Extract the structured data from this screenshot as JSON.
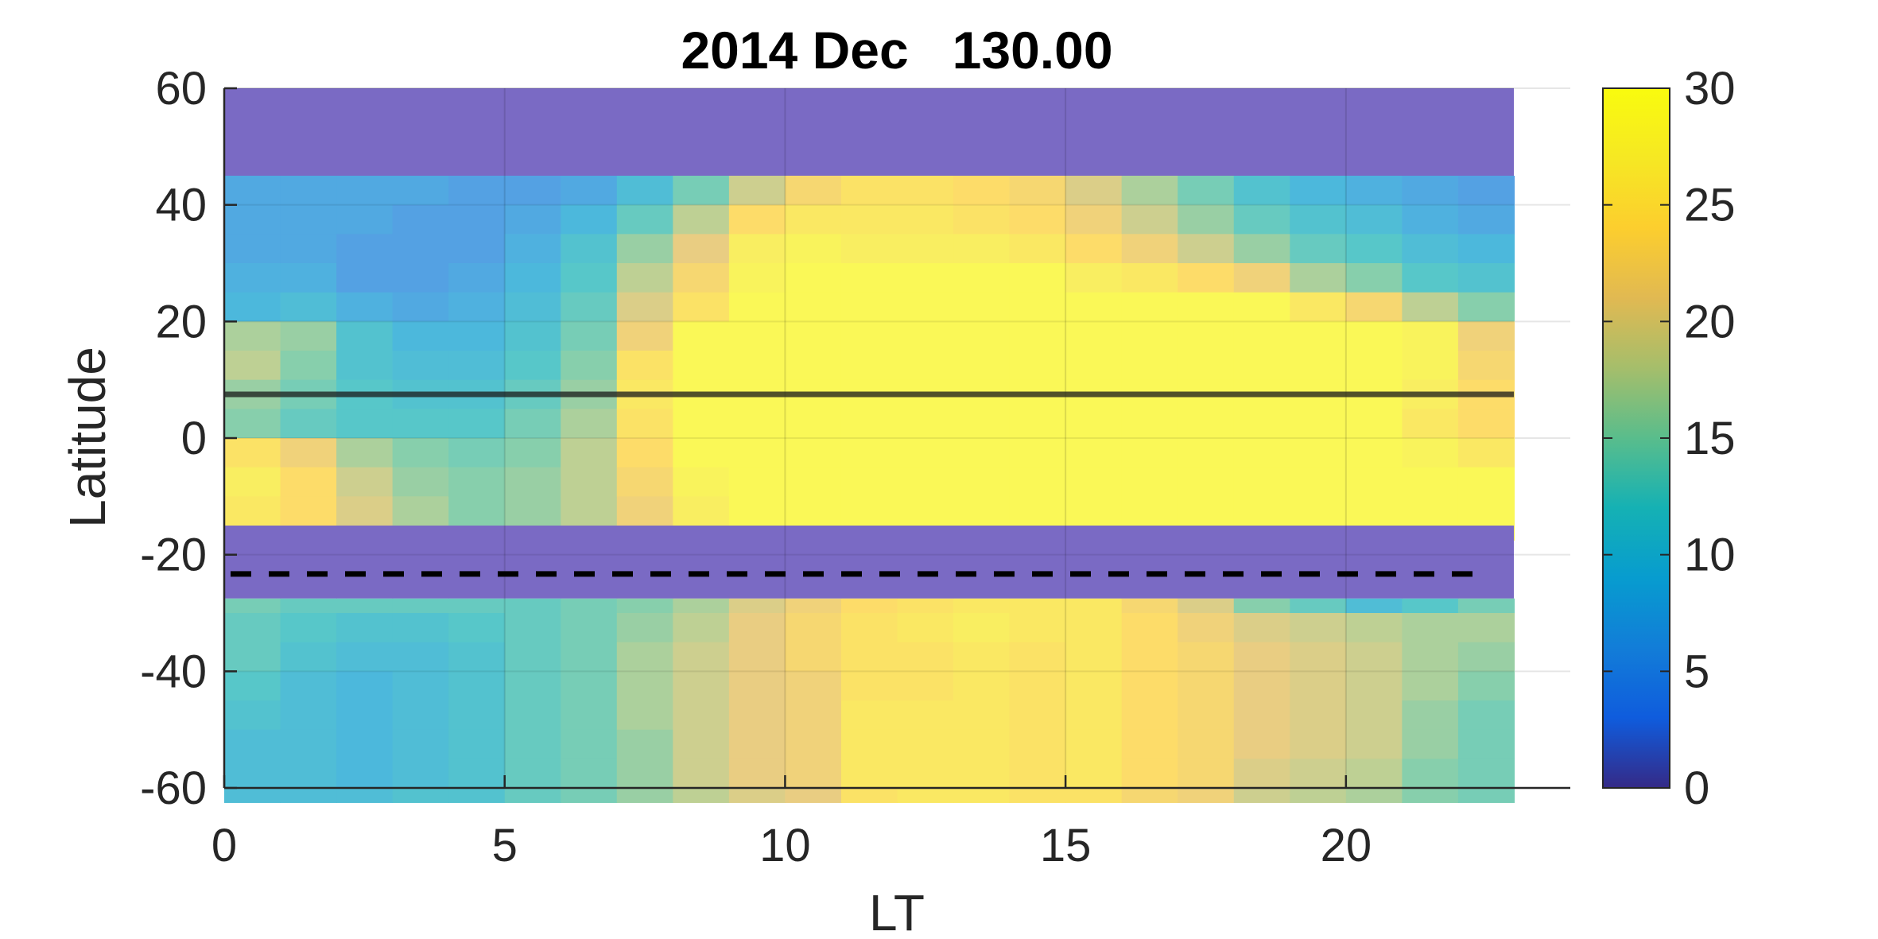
{
  "chart_data": {
    "type": "heatmap",
    "title": "2014 Dec   130.00",
    "xlabel": "LT",
    "ylabel": "Latitude",
    "xlim": [
      0,
      24
    ],
    "ylim": [
      -60,
      60
    ],
    "clim": [
      0,
      30
    ],
    "xticks": [
      "0",
      "5",
      "10",
      "15",
      "20"
    ],
    "yticks": [
      "-60",
      "-40",
      "-20",
      "0",
      "20",
      "40",
      "60"
    ],
    "colorbar_ticks": [
      "0",
      "5",
      "10",
      "15",
      "20",
      "25",
      "30"
    ],
    "colormap": "parula",
    "grid": true,
    "x_centers": [
      0.5,
      1.5,
      2.5,
      3.5,
      4.5,
      5.5,
      6.5,
      7.5,
      8.5,
      9.5,
      10.5,
      11.5,
      12.5,
      13.5,
      14.5,
      15.5,
      16.5,
      17.5,
      18.5,
      19.5,
      20.5,
      21.5,
      22.5
    ],
    "profiles_north": [
      {
        "lat": [
          45,
          40,
          35,
          30,
          25,
          20,
          15,
          10,
          5,
          0,
          -5,
          -10,
          -15
        ],
        "values": [
          7,
          7,
          7,
          8,
          9,
          17,
          18,
          16,
          15,
          25,
          27,
          26,
          25
        ]
      },
      {
        "lat": [
          45,
          40,
          35,
          30,
          25,
          20,
          15,
          10,
          5,
          0,
          -5,
          -10,
          -15
        ],
        "values": [
          7,
          7,
          7,
          8,
          10,
          16,
          15,
          14,
          13,
          22,
          24,
          24,
          23
        ]
      },
      {
        "lat": [
          45,
          40,
          35,
          30,
          25,
          20,
          15,
          10,
          5,
          0,
          -5,
          -10,
          -15
        ],
        "values": [
          7,
          7,
          6,
          6,
          8,
          11,
          11,
          12,
          12,
          17,
          19,
          20,
          20
        ]
      },
      {
        "lat": [
          45,
          40,
          35,
          30,
          25,
          20,
          15,
          10,
          5,
          0,
          -5,
          -10,
          -15
        ],
        "values": [
          7,
          6,
          6,
          6,
          7,
          9,
          10,
          11,
          12,
          15,
          16,
          17,
          17
        ]
      },
      {
        "lat": [
          45,
          40,
          35,
          30,
          25,
          20,
          15,
          10,
          5,
          0,
          -5,
          -10,
          -15
        ],
        "values": [
          6,
          6,
          6,
          7,
          8,
          9,
          10,
          11,
          12,
          14,
          15,
          15,
          15
        ]
      },
      {
        "lat": [
          45,
          40,
          35,
          30,
          25,
          20,
          15,
          10,
          5,
          0,
          -5,
          -10,
          -15
        ],
        "values": [
          6,
          7,
          8,
          9,
          10,
          11,
          12,
          13,
          14,
          15,
          16,
          16,
          16
        ]
      },
      {
        "lat": [
          45,
          40,
          35,
          30,
          25,
          20,
          15,
          10,
          5,
          0,
          -5,
          -10,
          -15
        ],
        "values": [
          7,
          9,
          11,
          12,
          13,
          14,
          15,
          16,
          17,
          18,
          18,
          18,
          18
        ]
      },
      {
        "lat": [
          45,
          40,
          35,
          30,
          25,
          20,
          15,
          10,
          5,
          0,
          -5,
          -10,
          -15
        ],
        "values": [
          10,
          13,
          16,
          18,
          20,
          22,
          25,
          26,
          25,
          24,
          23,
          22,
          22
        ]
      },
      {
        "lat": [
          45,
          40,
          35,
          30,
          25,
          20,
          15,
          10,
          5,
          0,
          -5,
          -10,
          -15
        ],
        "values": [
          14,
          18,
          21,
          23,
          25,
          29,
          29,
          29,
          29,
          29,
          28,
          27,
          27
        ]
      },
      {
        "lat": [
          45,
          40,
          35,
          30,
          25,
          20,
          15,
          10,
          5,
          0,
          -5,
          -10,
          -15
        ],
        "values": [
          19,
          24,
          27,
          28,
          29,
          29,
          29,
          29,
          29,
          29,
          29,
          29,
          28
        ]
      },
      {
        "lat": [
          45,
          40,
          35,
          30,
          25,
          20,
          15,
          10,
          5,
          0,
          -5,
          -10,
          -15
        ],
        "values": [
          23,
          26,
          28,
          29,
          29,
          29,
          29,
          29,
          29,
          29,
          29,
          29,
          29
        ]
      },
      {
        "lat": [
          45,
          40,
          35,
          30,
          25,
          20,
          15,
          10,
          5,
          0,
          -5,
          -10,
          -15
        ],
        "values": [
          25,
          26,
          27,
          29,
          29,
          29,
          29,
          29,
          29,
          29,
          29,
          29,
          29
        ]
      },
      {
        "lat": [
          45,
          40,
          35,
          30,
          25,
          20,
          15,
          10,
          5,
          0,
          -5,
          -10,
          -15
        ],
        "values": [
          25,
          26,
          27,
          29,
          29,
          29,
          29,
          29,
          29,
          29,
          29,
          29,
          29
        ]
      },
      {
        "lat": [
          45,
          40,
          35,
          30,
          25,
          20,
          15,
          10,
          5,
          0,
          -5,
          -10,
          -15
        ],
        "values": [
          24,
          25,
          27,
          29,
          29,
          29,
          29,
          29,
          29,
          29,
          29,
          29,
          29
        ]
      },
      {
        "lat": [
          45,
          40,
          35,
          30,
          25,
          20,
          15,
          10,
          5,
          0,
          -5,
          -10,
          -15
        ],
        "values": [
          23,
          24,
          26,
          29,
          29,
          29,
          29,
          29,
          29,
          29,
          29,
          29,
          29
        ]
      },
      {
        "lat": [
          45,
          40,
          35,
          30,
          25,
          20,
          15,
          10,
          5,
          0,
          -5,
          -10,
          -15
        ],
        "values": [
          20,
          22,
          24,
          27,
          29,
          29,
          29,
          29,
          29,
          29,
          29,
          29,
          29
        ]
      },
      {
        "lat": [
          45,
          40,
          35,
          30,
          25,
          20,
          15,
          10,
          5,
          0,
          -5,
          -10,
          -15
        ],
        "values": [
          17,
          19,
          22,
          26,
          29,
          29,
          29,
          29,
          29,
          29,
          29,
          29,
          29
        ]
      },
      {
        "lat": [
          45,
          40,
          35,
          30,
          25,
          20,
          15,
          10,
          5,
          0,
          -5,
          -10,
          -15
        ],
        "values": [
          14,
          16,
          19,
          24,
          29,
          29,
          29,
          29,
          29,
          29,
          29,
          29,
          29
        ]
      },
      {
        "lat": [
          45,
          40,
          35,
          30,
          25,
          20,
          15,
          10,
          5,
          0,
          -5,
          -10,
          -15
        ],
        "values": [
          11,
          13,
          16,
          22,
          29,
          29,
          29,
          29,
          29,
          29,
          29,
          29,
          29
        ]
      },
      {
        "lat": [
          45,
          40,
          35,
          30,
          25,
          20,
          15,
          10,
          5,
          0,
          -5,
          -10,
          -15
        ],
        "values": [
          9,
          11,
          13,
          17,
          26,
          29,
          29,
          29,
          29,
          29,
          29,
          29,
          29
        ]
      },
      {
        "lat": [
          45,
          40,
          35,
          30,
          25,
          20,
          15,
          10,
          5,
          0,
          -5,
          -10,
          -15
        ],
        "values": [
          8,
          10,
          12,
          15,
          23,
          29,
          29,
          29,
          29,
          29,
          29,
          29,
          29
        ]
      },
      {
        "lat": [
          45,
          40,
          35,
          30,
          25,
          20,
          15,
          10,
          5,
          0,
          -5,
          -10,
          -15
        ],
        "values": [
          7,
          8,
          10,
          12,
          18,
          28,
          28,
          27,
          26,
          28,
          29,
          29,
          29
        ]
      },
      {
        "lat": [
          45,
          40,
          35,
          30,
          25,
          20,
          15,
          10,
          5,
          0,
          -5,
          -10,
          -15
        ],
        "values": [
          6,
          7,
          9,
          11,
          15,
          22,
          23,
          24,
          24,
          26,
          29,
          29,
          29
        ]
      }
    ],
    "profiles_south": [
      {
        "lat": [
          -27.5,
          -30,
          -35,
          -40,
          -45,
          -50,
          -55,
          -60
        ],
        "values": [
          14,
          13,
          13,
          12,
          11,
          10,
          10,
          10
        ]
      },
      {
        "lat": [
          -27.5,
          -30,
          -35,
          -40,
          -45,
          -50,
          -55,
          -60
        ],
        "values": [
          13,
          12,
          11,
          10,
          10,
          10,
          10,
          10
        ]
      },
      {
        "lat": [
          -27.5,
          -30,
          -35,
          -40,
          -45,
          -50,
          -55,
          -60
        ],
        "values": [
          13,
          11,
          10,
          9,
          9,
          9,
          9,
          10
        ]
      },
      {
        "lat": [
          -27.5,
          -30,
          -35,
          -40,
          -45,
          -50,
          -55,
          -60
        ],
        "values": [
          13,
          11,
          10,
          10,
          10,
          10,
          10,
          11
        ]
      },
      {
        "lat": [
          -27.5,
          -30,
          -35,
          -40,
          -45,
          -50,
          -55,
          -60
        ],
        "values": [
          13,
          12,
          11,
          11,
          11,
          11,
          11,
          11
        ]
      },
      {
        "lat": [
          -27.5,
          -30,
          -35,
          -40,
          -45,
          -50,
          -55,
          -60
        ],
        "values": [
          13,
          13,
          13,
          13,
          13,
          13,
          13,
          13
        ]
      },
      {
        "lat": [
          -27.5,
          -30,
          -35,
          -40,
          -45,
          -50,
          -55,
          -60
        ],
        "values": [
          14,
          14,
          14,
          14,
          14,
          14,
          14,
          14
        ]
      },
      {
        "lat": [
          -27.5,
          -30,
          -35,
          -40,
          -45,
          -50,
          -55,
          -60
        ],
        "values": [
          15,
          16,
          17,
          17,
          17,
          16,
          16,
          16
        ]
      },
      {
        "lat": [
          -27.5,
          -30,
          -35,
          -40,
          -45,
          -50,
          -55,
          -60
        ],
        "values": [
          17,
          18,
          19,
          19,
          19,
          19,
          19,
          18
        ]
      },
      {
        "lat": [
          -27.5,
          -30,
          -35,
          -40,
          -45,
          -50,
          -55,
          -60
        ],
        "values": [
          20,
          21,
          21,
          21,
          21,
          21,
          21,
          20
        ]
      },
      {
        "lat": [
          -27.5,
          -30,
          -35,
          -40,
          -45,
          -50,
          -55,
          -60
        ],
        "values": [
          22,
          23,
          23,
          22,
          22,
          22,
          22,
          21
        ]
      },
      {
        "lat": [
          -27.5,
          -30,
          -35,
          -40,
          -45,
          -50,
          -55,
          -60
        ],
        "values": [
          24,
          25,
          25,
          25,
          26,
          26,
          26,
          25
        ]
      },
      {
        "lat": [
          -27.5,
          -30,
          -35,
          -40,
          -45,
          -50,
          -55,
          -60
        ],
        "values": [
          25,
          26,
          25,
          25,
          26,
          26,
          26,
          26
        ]
      },
      {
        "lat": [
          -27.5,
          -30,
          -35,
          -40,
          -45,
          -50,
          -55,
          -60
        ],
        "values": [
          26,
          27,
          26,
          26,
          26,
          26,
          26,
          26
        ]
      },
      {
        "lat": [
          -27.5,
          -30,
          -35,
          -40,
          -45,
          -50,
          -55,
          -60
        ],
        "values": [
          26,
          26,
          25,
          25,
          25,
          25,
          25,
          25
        ]
      },
      {
        "lat": [
          -27.5,
          -30,
          -35,
          -40,
          -45,
          -50,
          -55,
          -60
        ],
        "values": [
          26,
          26,
          26,
          26,
          26,
          26,
          26,
          25
        ]
      },
      {
        "lat": [
          -27.5,
          -30,
          -35,
          -40,
          -45,
          -50,
          -55,
          -60
        ],
        "values": [
          23,
          24,
          24,
          24,
          24,
          24,
          24,
          23
        ]
      },
      {
        "lat": [
          -27.5,
          -30,
          -35,
          -40,
          -45,
          -50,
          -55,
          -60
        ],
        "values": [
          20,
          22,
          23,
          23,
          23,
          23,
          23,
          22
        ]
      },
      {
        "lat": [
          -27.5,
          -30,
          -35,
          -40,
          -45,
          -50,
          -55,
          -60
        ],
        "values": [
          15,
          20,
          21,
          21,
          21,
          21,
          20,
          19
        ]
      },
      {
        "lat": [
          -27.5,
          -30,
          -35,
          -40,
          -45,
          -50,
          -55,
          -60
        ],
        "values": [
          13,
          19,
          20,
          20,
          20,
          20,
          19,
          18
        ]
      },
      {
        "lat": [
          -27.5,
          -30,
          -35,
          -40,
          -45,
          -50,
          -55,
          -60
        ],
        "values": [
          10,
          18,
          19,
          19,
          19,
          19,
          18,
          17
        ]
      },
      {
        "lat": [
          -27.5,
          -30,
          -35,
          -40,
          -45,
          -50,
          -55,
          -60
        ],
        "values": [
          12,
          17,
          17,
          17,
          16,
          16,
          15,
          15
        ]
      },
      {
        "lat": [
          -27.5,
          -30,
          -35,
          -40,
          -45,
          -50,
          -55,
          -60
        ],
        "values": [
          14,
          17,
          16,
          15,
          14,
          14,
          14,
          14
        ]
      }
    ],
    "masked_bands": [
      {
        "lat_min": 45,
        "lat_max": 60
      },
      {
        "lat_min": -27.5,
        "lat_max": -15
      }
    ],
    "mask_color": "#7a6ac4",
    "reference_lines": [
      {
        "name": "solid-latitude-line",
        "lat": 7.5,
        "style": "solid",
        "color": "#1a1a1a"
      },
      {
        "name": "dashed-latitude-line",
        "lat": -23.3,
        "style": "dashed",
        "color": "#000000"
      }
    ]
  }
}
